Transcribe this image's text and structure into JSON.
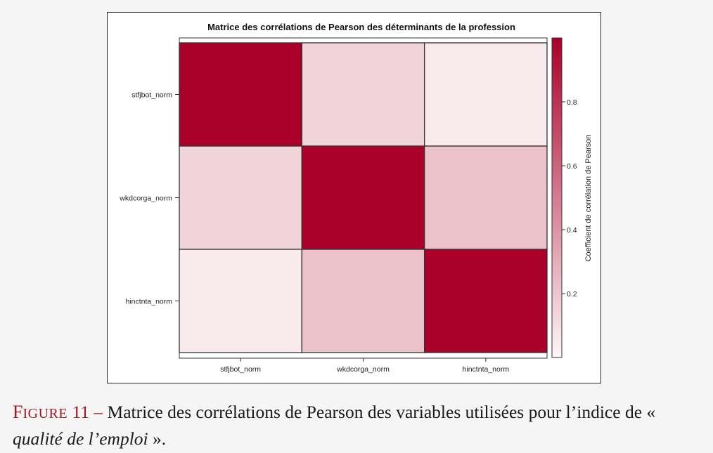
{
  "chart_data": {
    "type": "heatmap",
    "title": "Matrice des corrélations de Pearson des déterminants de la profession",
    "rows": [
      "stfjbot_norm",
      "wkdcorga_norm",
      "hinctnta_norm"
    ],
    "columns": [
      "stfjbot_norm",
      "wkdcorga_norm",
      "hinctnta_norm"
    ],
    "values": [
      [
        1.0,
        0.14,
        0.05
      ],
      [
        0.14,
        1.0,
        0.22
      ],
      [
        0.05,
        0.22,
        1.0
      ]
    ],
    "colorbar": {
      "label": "Coefficient de corrélation de Pearson",
      "range": [
        0.0,
        1.0
      ],
      "ticks": [
        0.2,
        0.4,
        0.6,
        0.8
      ],
      "tick_labels": [
        "0.2",
        "0.4",
        "0.6",
        "0.8"
      ],
      "color_low": "#fdf7f7",
      "color_high": "#aa0029"
    },
    "legend_position": "right"
  },
  "caption": {
    "label_first": "F",
    "label_rest": "IGURE",
    "label_number": "11",
    "dash": "–",
    "text_before": "Matrice des corrélations de Pearson des variables utilisées pour l’indice de «",
    "text_italic": "qualité de l’emploi",
    "text_after": "»."
  }
}
